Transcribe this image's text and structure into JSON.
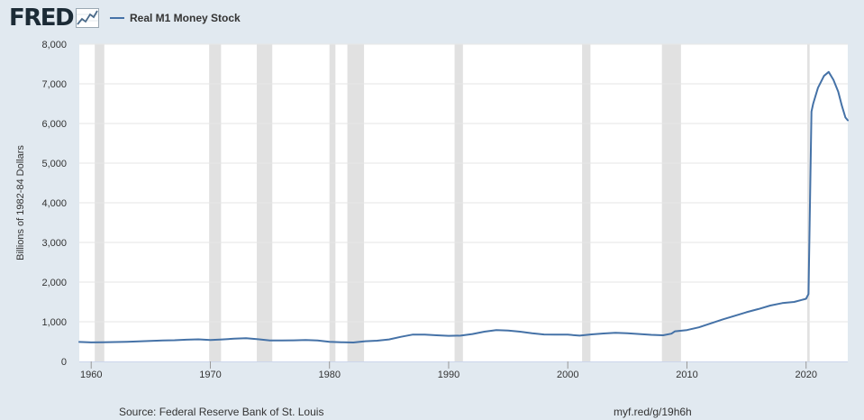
{
  "header": {
    "logo_text": "FRED",
    "legend_label": "Real M1 Money Stock"
  },
  "footer": {
    "source": "Source: Federal Reserve Bank of St. Louis",
    "link": "myf.red/g/19h6h"
  },
  "colors": {
    "page_background": "#e1e9f0",
    "plot_background": "#ffffff",
    "series_line": "#4572a7",
    "recession_shading": "#e1e1e1",
    "grid_line": "#e6e6e6",
    "logo_text": "#1c2b36"
  },
  "chart_data": {
    "type": "line",
    "title": "",
    "xlabel": "",
    "ylabel": "Billions of 1982-84 Dollars",
    "xlim": [
      1959,
      2023.5
    ],
    "ylim": [
      0,
      8000
    ],
    "x_ticks": [
      {
        "value": 1960,
        "label": "1960"
      },
      {
        "value": 1970,
        "label": "1970"
      },
      {
        "value": 1980,
        "label": "1980"
      },
      {
        "value": 1990,
        "label": "1990"
      },
      {
        "value": 2000,
        "label": "2000"
      },
      {
        "value": 2010,
        "label": "2010"
      },
      {
        "value": 2020,
        "label": "2020"
      }
    ],
    "y_ticks": [
      {
        "value": 0,
        "label": "0"
      },
      {
        "value": 1000,
        "label": "1,000"
      },
      {
        "value": 2000,
        "label": "2,000"
      },
      {
        "value": 3000,
        "label": "3,000"
      },
      {
        "value": 4000,
        "label": "4,000"
      },
      {
        "value": 5000,
        "label": "5,000"
      },
      {
        "value": 6000,
        "label": "6,000"
      },
      {
        "value": 7000,
        "label": "7,000"
      },
      {
        "value": 8000,
        "label": "8,000"
      }
    ],
    "grid": true,
    "legend_position": "top-left",
    "recessions": [
      [
        1960.3,
        1961.1
      ],
      [
        1969.9,
        1970.9
      ],
      [
        1973.9,
        1975.2
      ],
      [
        1980.0,
        1980.5
      ],
      [
        1981.5,
        1982.9
      ],
      [
        1990.5,
        1991.2
      ],
      [
        2001.2,
        2001.9
      ],
      [
        2007.9,
        2009.5
      ],
      [
        2020.1,
        2020.3
      ]
    ],
    "series": [
      {
        "name": "Real M1 Money Stock",
        "color": "#4572a7",
        "x": [
          1959,
          1960,
          1961,
          1962,
          1963,
          1964,
          1965,
          1966,
          1967,
          1968,
          1969,
          1970,
          1971,
          1972,
          1973,
          1974,
          1975,
          1976,
          1977,
          1978,
          1979,
          1980,
          1981,
          1982,
          1983,
          1984,
          1985,
          1986,
          1987,
          1988,
          1989,
          1990,
          1991,
          1992,
          1993,
          1994,
          1995,
          1996,
          1997,
          1998,
          1999,
          2000,
          2001,
          2002,
          2003,
          2004,
          2005,
          2006,
          2007,
          2008,
          2008.7,
          2009,
          2010,
          2011,
          2012,
          2013,
          2014,
          2015,
          2016,
          2017,
          2018,
          2019,
          2020,
          2020.2,
          2020.3,
          2020.45,
          2020.6,
          2021,
          2021.5,
          2021.9,
          2022.3,
          2022.7,
          2023,
          2023.3,
          2023.5
        ],
        "y": [
          490,
          480,
          482,
          488,
          495,
          505,
          518,
          530,
          535,
          548,
          556,
          540,
          555,
          572,
          585,
          560,
          530,
          528,
          532,
          538,
          530,
          495,
          485,
          478,
          510,
          522,
          555,
          620,
          678,
          675,
          660,
          645,
          650,
          690,
          750,
          790,
          780,
          750,
          710,
          680,
          675,
          675,
          650,
          682,
          705,
          720,
          710,
          690,
          670,
          660,
          700,
          760,
          790,
          860,
          960,
          1060,
          1150,
          1240,
          1320,
          1410,
          1470,
          1500,
          1580,
          1700,
          3500,
          6300,
          6500,
          6900,
          7200,
          7300,
          7100,
          6800,
          6450,
          6150,
          6080
        ]
      }
    ]
  }
}
